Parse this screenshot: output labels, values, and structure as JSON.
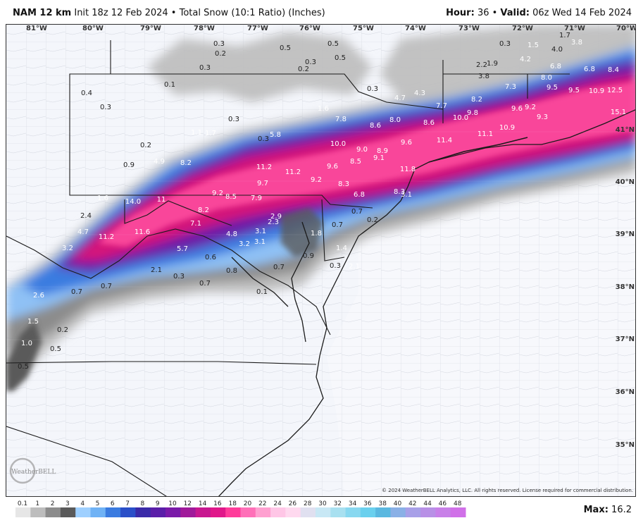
{
  "header": {
    "model": "NAM 12 km",
    "subtitle": "Init 18z 12 Feb 2024 • Total Snow (10:1 Ratio) (Inches)",
    "hour_label": "Hour:",
    "hour_value": "36",
    "valid_label": "Valid:",
    "valid_value": "06z Wed 14 Feb 2024"
  },
  "copyright": "© 2024 WeatherBELL Analytics, LLC. All rights reserved. License required for commercial distribution.",
  "logo_text": "WeatherBELL",
  "max_label": "Max:",
  "max_value": "16.2",
  "colors": {
    "land": "#f4f6fb",
    "border": "#1a1a1a",
    "county": "#c8ccd6",
    "light_gray": "#bdbdbd",
    "mid_gray": "#8c8c8c",
    "dark_gray": "#5a5a5a",
    "light_blue": "#8fc1f5",
    "blue": "#3a7be0",
    "dark_blue": "#2a4fc8",
    "purple": "#6b1fa8",
    "magenta": "#d4157a",
    "pink": "#ff4fa0"
  },
  "longitudes": [
    "81°W",
    "80°W",
    "79°W",
    "78°W",
    "77°W",
    "76°W",
    "75°W",
    "74°W",
    "73°W",
    "72°W",
    "71°W",
    "70°W"
  ],
  "latitudes": [
    "41°N",
    "40°N",
    "39°N",
    "38°N",
    "37°N",
    "36°N",
    "35°N"
  ],
  "colorbar": {
    "ticks": [
      "0.1",
      "1",
      "2",
      "3",
      "4",
      "5",
      "6",
      "7",
      "8",
      "9",
      "10",
      "12",
      "14",
      "16",
      "18",
      "20",
      "22",
      "24",
      "26",
      "28",
      "30",
      "32",
      "34",
      "36",
      "38",
      "40",
      "42",
      "44",
      "46",
      "48"
    ],
    "colors": [
      "#e6e6e6",
      "#bdbdbd",
      "#8c8c8c",
      "#5a5a5a",
      "#9fd0ff",
      "#6fb2f5",
      "#3a7be0",
      "#2a4fc8",
      "#3a2aa8",
      "#5a1ea8",
      "#7a1aa8",
      "#a01a9a",
      "#c81890",
      "#e0188a",
      "#ff3c9a",
      "#ff70b8",
      "#ffa0d0",
      "#ffc6e6",
      "#ffd9ef",
      "#e0e0f0",
      "#c8e8f5",
      "#a8e0f0",
      "#88d8f0",
      "#6ad0ee",
      "#5ab8e0",
      "#8ab0e6",
      "#a8a0e8",
      "#b890e6",
      "#c880e8",
      "#d070e8"
    ]
  },
  "snow_amounts": [
    {
      "v": "0.3",
      "c": "#222"
    },
    {
      "v": "0.2",
      "c": "#222"
    },
    {
      "v": "0.5",
      "c": "#222"
    },
    {
      "v": "0.5",
      "c": "#222"
    },
    {
      "v": "0.3",
      "c": "#222"
    },
    {
      "v": "0.5",
      "c": "#222"
    },
    {
      "v": "0.3",
      "c": "#222"
    },
    {
      "v": "0.2",
      "c": "#222"
    },
    {
      "v": "0.3",
      "c": "#222"
    },
    {
      "v": "1.5",
      "c": "#fff"
    },
    {
      "v": "1.7",
      "c": "#222"
    },
    {
      "v": "3.8",
      "c": "#fff"
    },
    {
      "v": "0.1",
      "c": "#222"
    },
    {
      "v": "0.3",
      "c": "#222"
    },
    {
      "v": "0.4",
      "c": "#222"
    },
    {
      "v": "0.3",
      "c": "#222"
    },
    {
      "v": "0.3",
      "c": "#222"
    },
    {
      "v": "4.7",
      "c": "#fff"
    },
    {
      "v": "4.3",
      "c": "#fff"
    },
    {
      "v": "2.2",
      "c": "#222"
    },
    {
      "v": "1.9",
      "c": "#222"
    },
    {
      "v": "4.0",
      "c": "#222"
    },
    {
      "v": "4.2",
      "c": "#fff"
    },
    {
      "v": "6.8",
      "c": "#fff"
    },
    {
      "v": "6.8",
      "c": "#fff"
    },
    {
      "v": "8.4",
      "c": "#fff"
    },
    {
      "v": "3.8",
      "c": "#222"
    },
    {
      "v": "7.3",
      "c": "#fff"
    },
    {
      "v": "8.0",
      "c": "#fff"
    },
    {
      "v": "9.5",
      "c": "#fff"
    },
    {
      "v": "9.5",
      "c": "#fff"
    },
    {
      "v": "10.9",
      "c": "#fff"
    },
    {
      "v": "12.5",
      "c": "#fff"
    },
    {
      "v": "8.2",
      "c": "#fff"
    },
    {
      "v": "7.7",
      "c": "#fff"
    },
    {
      "v": "9.8",
      "c": "#fff"
    },
    {
      "v": "10.0",
      "c": "#fff"
    },
    {
      "v": "9.6",
      "c": "#fff"
    },
    {
      "v": "9.2",
      "c": "#fff"
    },
    {
      "v": "9.3",
      "c": "#fff"
    },
    {
      "v": "11.1",
      "c": "#fff"
    },
    {
      "v": "10.9",
      "c": "#fff"
    },
    {
      "v": "15.1",
      "c": "#fff"
    },
    {
      "v": "1.6",
      "c": "#fff"
    },
    {
      "v": "7.8",
      "c": "#fff"
    },
    {
      "v": "8.6",
      "c": "#fff"
    },
    {
      "v": "8.0",
      "c": "#fff"
    },
    {
      "v": "8.6",
      "c": "#fff"
    },
    {
      "v": "0.3",
      "c": "#222"
    },
    {
      "v": "5.8",
      "c": "#fff"
    },
    {
      "v": "1.1",
      "c": "#fff"
    },
    {
      "v": "1.7",
      "c": "#fff"
    },
    {
      "v": "11.4",
      "c": "#fff"
    },
    {
      "v": "9.6",
      "c": "#fff"
    },
    {
      "v": "10.0",
      "c": "#fff"
    },
    {
      "v": "9.0",
      "c": "#fff"
    },
    {
      "v": "8.9",
      "c": "#fff"
    },
    {
      "v": "9.1",
      "c": "#fff"
    },
    {
      "v": "8.5",
      "c": "#fff"
    },
    {
      "v": "0.2",
      "c": "#222"
    },
    {
      "v": "0.9",
      "c": "#222"
    },
    {
      "v": "4.9",
      "c": "#fff"
    },
    {
      "v": "8.2",
      "c": "#fff"
    },
    {
      "v": "11.2",
      "c": "#fff"
    },
    {
      "v": "11.2",
      "c": "#fff"
    },
    {
      "v": "9.6",
      "c": "#fff"
    },
    {
      "v": "11.8",
      "c": "#fff"
    },
    {
      "v": "9.7",
      "c": "#fff"
    },
    {
      "v": "9.2",
      "c": "#fff"
    },
    {
      "v": "8.3",
      "c": "#fff"
    },
    {
      "v": "6.8",
      "c": "#fff"
    },
    {
      "v": "8.3",
      "c": "#fff"
    },
    {
      "v": "1.6",
      "c": "#fff"
    },
    {
      "v": "14.0",
      "c": "#fff"
    },
    {
      "v": "11",
      "c": "#fff"
    },
    {
      "v": "9.2",
      "c": "#fff"
    },
    {
      "v": "8.5",
      "c": "#fff"
    },
    {
      "v": "7.9",
      "c": "#fff"
    },
    {
      "v": "3.1",
      "c": "#fff"
    },
    {
      "v": "8.2",
      "c": "#fff"
    },
    {
      "v": "2.4",
      "c": "#222"
    },
    {
      "v": "2.9",
      "c": "#fff"
    },
    {
      "v": "0.7",
      "c": "#222"
    },
    {
      "v": "0.2",
      "c": "#222"
    },
    {
      "v": "4.7",
      "c": "#fff"
    },
    {
      "v": "7.1",
      "c": "#fff"
    },
    {
      "v": "2.3",
      "c": "#fff"
    },
    {
      "v": "0.7",
      "c": "#222"
    },
    {
      "v": "11.6",
      "c": "#fff"
    },
    {
      "v": "11.2",
      "c": "#fff"
    },
    {
      "v": "4.8",
      "c": "#fff"
    },
    {
      "v": "3.1",
      "c": "#fff"
    },
    {
      "v": "3.1",
      "c": "#fff"
    },
    {
      "v": "1.8",
      "c": "#fff"
    },
    {
      "v": "3.2",
      "c": "#fff"
    },
    {
      "v": "5.7",
      "c": "#fff"
    },
    {
      "v": "1.4",
      "c": "#fff"
    },
    {
      "v": "3.2",
      "c": "#fff"
    },
    {
      "v": "0.9",
      "c": "#222"
    },
    {
      "v": "2.1",
      "c": "#222"
    },
    {
      "v": "0.6",
      "c": "#222"
    },
    {
      "v": "0.8",
      "c": "#222"
    },
    {
      "v": "0.7",
      "c": "#222"
    },
    {
      "v": "0.3",
      "c": "#222"
    },
    {
      "v": "2.1",
      "c": "#fff"
    },
    {
      "v": "0.3",
      "c": "#222"
    },
    {
      "v": "0.7",
      "c": "#222"
    },
    {
      "v": "2.6",
      "c": "#fff"
    },
    {
      "v": "0.7",
      "c": "#222"
    },
    {
      "v": "0.7",
      "c": "#222"
    },
    {
      "v": "0.1",
      "c": "#222"
    },
    {
      "v": "1.5",
      "c": "#fff"
    },
    {
      "v": "0.2",
      "c": "#222"
    },
    {
      "v": "1.0",
      "c": "#fff"
    },
    {
      "v": "0.5",
      "c": "#222"
    },
    {
      "v": "0.5",
      "c": "#222"
    }
  ]
}
